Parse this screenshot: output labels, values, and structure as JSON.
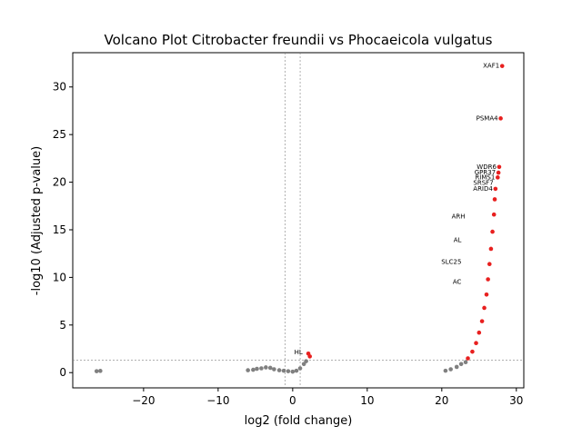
{
  "chart_data": {
    "type": "scatter",
    "title": "Volcano Plot Citrobacter freundii vs Phocaeicola vulgatus",
    "xlabel": "log2 (fold change)",
    "ylabel": "-log10 (Adjusted p-value)",
    "xlim": [
      -29.5,
      31
    ],
    "ylim": [
      -1.6,
      33.6
    ],
    "x_ticks": [
      -20,
      -10,
      0,
      10,
      20,
      30
    ],
    "y_ticks": [
      0,
      5,
      10,
      15,
      20,
      25,
      30
    ],
    "x_tick_labels": [
      "−20",
      "−10",
      "0",
      "10",
      "20",
      "30"
    ],
    "y_tick_labels": [
      "0",
      "5",
      "10",
      "15",
      "20",
      "25",
      "30"
    ],
    "thresholds": {
      "log2fc": [
        -1,
        1
      ],
      "neg_log10_p": 1.3
    },
    "colors": {
      "not_significant": "#808080",
      "significant": "#e8201f",
      "threshold_line": "#808080",
      "label_text": "#000000"
    },
    "series": [
      {
        "values": [
          {
            "x": -26.3,
            "y": 0.15
          },
          {
            "x": -25.8,
            "y": 0.18
          },
          {
            "x": -6.0,
            "y": 0.25
          },
          {
            "x": -5.3,
            "y": 0.3
          },
          {
            "x": -4.8,
            "y": 0.4
          },
          {
            "x": -4.2,
            "y": 0.45
          },
          {
            "x": -3.6,
            "y": 0.55
          },
          {
            "x": -3.0,
            "y": 0.5
          },
          {
            "x": -2.5,
            "y": 0.35
          },
          {
            "x": -1.8,
            "y": 0.25
          },
          {
            "x": -1.2,
            "y": 0.2
          },
          {
            "x": -0.6,
            "y": 0.15
          },
          {
            "x": 0.0,
            "y": 0.1
          },
          {
            "x": 0.5,
            "y": 0.2
          },
          {
            "x": 1.0,
            "y": 0.45
          },
          {
            "x": 1.5,
            "y": 0.9
          },
          {
            "x": 1.8,
            "y": 1.2
          },
          {
            "x": 20.5,
            "y": 0.2
          },
          {
            "x": 21.2,
            "y": 0.35
          },
          {
            "x": 22.0,
            "y": 0.6
          },
          {
            "x": 22.6,
            "y": 0.9
          },
          {
            "x": 23.2,
            "y": 1.1
          }
        ]
      },
      {
        "values": [
          {
            "x": 2.3,
            "y": 1.7
          },
          {
            "x": 2.1,
            "y": 2.0
          },
          {
            "x": 23.5,
            "y": 1.5
          },
          {
            "x": 24.1,
            "y": 2.2
          },
          {
            "x": 24.6,
            "y": 3.1
          },
          {
            "x": 25.0,
            "y": 4.2
          },
          {
            "x": 25.4,
            "y": 5.4
          },
          {
            "x": 25.7,
            "y": 6.8
          },
          {
            "x": 26.0,
            "y": 8.2
          },
          {
            "x": 26.2,
            "y": 9.8
          },
          {
            "x": 26.4,
            "y": 11.4
          },
          {
            "x": 26.6,
            "y": 13.0
          },
          {
            "x": 26.8,
            "y": 14.8
          },
          {
            "x": 27.0,
            "y": 16.6
          },
          {
            "x": 27.1,
            "y": 18.2
          },
          {
            "x": 27.2,
            "y": 19.3
          },
          {
            "x": 27.5,
            "y": 20.5
          },
          {
            "x": 27.6,
            "y": 21.0
          },
          {
            "x": 27.7,
            "y": 21.6
          },
          {
            "x": 27.9,
            "y": 26.7
          },
          {
            "x": 28.1,
            "y": 32.2
          }
        ]
      }
    ],
    "labeled_points": [
      {
        "x": 28.1,
        "y": 32.2,
        "label": "XAF1"
      },
      {
        "x": 27.9,
        "y": 26.7,
        "label": "PSMA4"
      },
      {
        "x": 27.7,
        "y": 21.6,
        "label": "WDR6"
      },
      {
        "x": 27.6,
        "y": 21.0,
        "label": "GPR37"
      },
      {
        "x": 27.5,
        "y": 20.5,
        "label": "RIMS1"
      },
      {
        "x": 27.3,
        "y": 19.9,
        "label": "SRSF7"
      },
      {
        "x": 27.2,
        "y": 19.3,
        "label": "ARID4"
      },
      {
        "x": 23.5,
        "y": 16.4,
        "label": "ARH"
      },
      {
        "x": 23.0,
        "y": 13.9,
        "label": "AL"
      },
      {
        "x": 23.0,
        "y": 11.6,
        "label": "SLC25"
      },
      {
        "x": 23.0,
        "y": 9.5,
        "label": "AC"
      },
      {
        "x": 1.7,
        "y": 2.1,
        "label": "HL"
      }
    ]
  }
}
